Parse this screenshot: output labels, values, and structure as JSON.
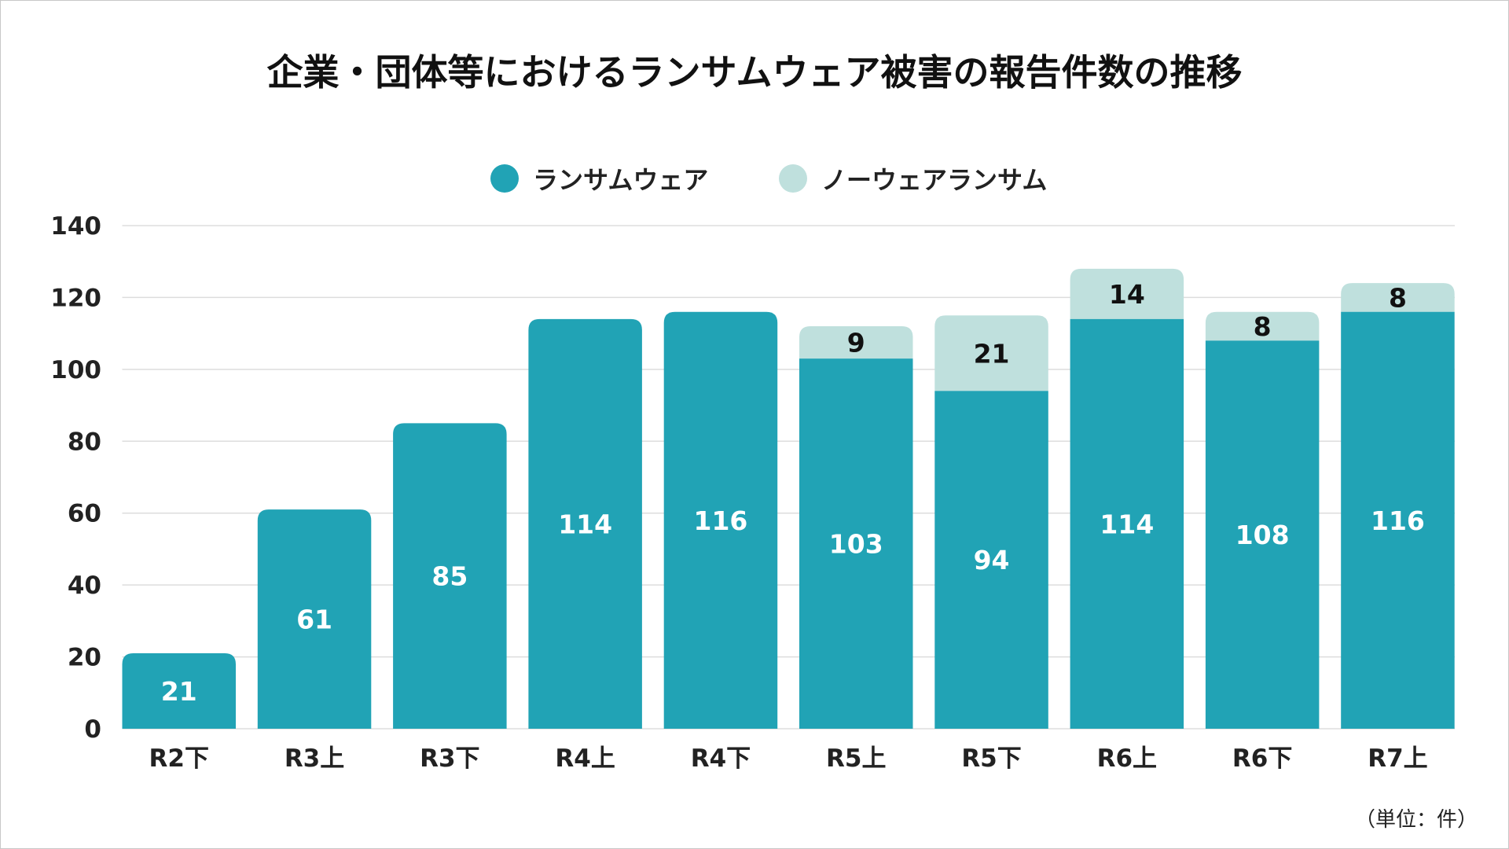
{
  "chart_data": {
    "type": "bar",
    "stacked": true,
    "title": "企業・団体等におけるランサムウェア被害の報告件数の推移",
    "unit_note": "（単位：件）",
    "categories": [
      "R2下",
      "R3上",
      "R3下",
      "R4上",
      "R4下",
      "R5上",
      "R5下",
      "R6上",
      "R6下",
      "R7上"
    ],
    "series": [
      {
        "name": "ランサムウェア",
        "color": "#21a3b5",
        "values": [
          21,
          61,
          85,
          114,
          116,
          103,
          94,
          114,
          108,
          116
        ]
      },
      {
        "name": "ノーウェアランサム",
        "color": "#bfe0dd",
        "values": [
          null,
          null,
          null,
          null,
          null,
          9,
          21,
          14,
          8,
          8
        ]
      }
    ],
    "ylim": [
      0,
      140
    ],
    "yticks": [
      0,
      20,
      40,
      60,
      80,
      100,
      120,
      140
    ],
    "grid": true,
    "legend_position": "top-center"
  }
}
